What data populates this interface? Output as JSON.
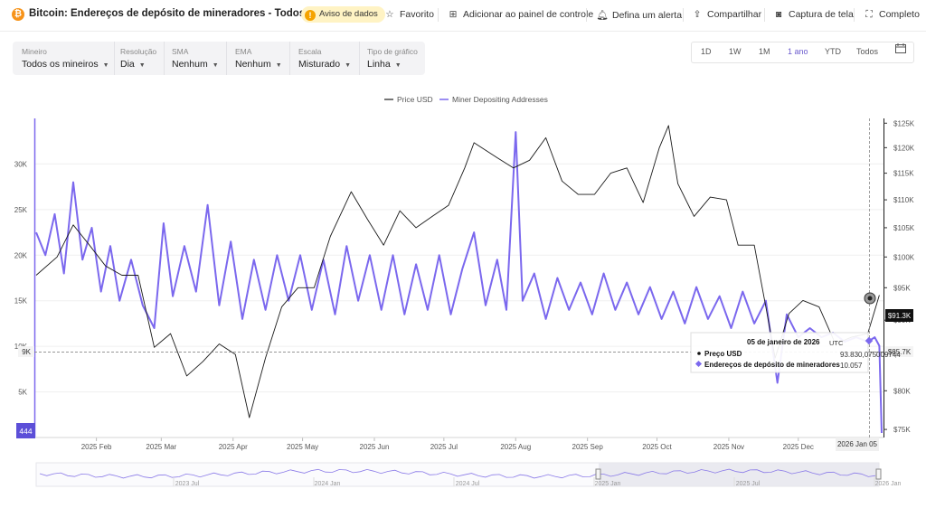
{
  "header": {
    "coin_glyph": "₿",
    "title": "Bitcoin: Endereços de depósito de mineradores - Todos os ...",
    "warning_label": "Aviso de dados",
    "actions": {
      "favorite": "Favorito",
      "add_dashboard": "Adicionar ao painel de controle",
      "alert": "Defina um alerta",
      "share": "Compartilhar",
      "screenshot": "Captura de tela",
      "fullscreen": "Completo"
    }
  },
  "filters": [
    {
      "label": "Mineiro",
      "value": "Todos os mineiros"
    },
    {
      "label": "Resolução",
      "value": "Dia"
    },
    {
      "label": "SMA",
      "value": "Nenhum"
    },
    {
      "label": "EMA",
      "value": "Nenhum"
    },
    {
      "label": "Escala",
      "value": "Misturado"
    },
    {
      "label": "Tipo de gráfico",
      "value": "Linha"
    }
  ],
  "ranges": [
    "1D",
    "1W",
    "1M",
    "1 ano",
    "YTD",
    "Todos"
  ],
  "active_range": "1 ano",
  "colors": {
    "price": "#1a1a1a",
    "addresses": "#7b68ee",
    "accent": "#6a5acd"
  },
  "tooltip": {
    "date": "05 de janeiro de 2026",
    "tz": "UTC",
    "rows": [
      {
        "label": "Preço USD",
        "value": "93.830,075009744"
      },
      {
        "label": "Endereços de depósito de mineradores",
        "value": "10.057"
      }
    ]
  },
  "chart_data": {
    "type": "line",
    "legend": [
      "Price USD",
      "Miner Depositing Addresses"
    ],
    "legend_position": "top-center",
    "x_labels": [
      "2025 Feb",
      "2025 Mar",
      "2025 Apr",
      "2025 May",
      "2025 Jun",
      "2025 Jul",
      "2025 Aug",
      "2025 Sep",
      "2025 Oct",
      "2025 Nov",
      "2025 Dec",
      "2026 Jan 05"
    ],
    "left_axis": {
      "ticks": [
        "5K",
        "10K",
        "15K",
        "20K",
        "25K",
        "30K"
      ],
      "ylim": [
        0,
        35000
      ],
      "marker": "9K",
      "bottom_marker": "444"
    },
    "right_axis": {
      "ticks": [
        "$75K",
        "$80K",
        "$85K",
        "$90K",
        "$95K",
        "$100K",
        "$105K",
        "$110K",
        "$115K",
        "$120K",
        "$125K"
      ],
      "ylim": [
        74000,
        126000
      ],
      "current": "$91.3K",
      "marker": "$85.7K",
      "scale": "log"
    },
    "x_start": "2025-01-06",
    "x_end": "2026-01-06",
    "series": [
      {
        "name": "Price USD",
        "points": [
          [
            "2025-01-06",
            97000
          ],
          [
            "2025-01-15",
            100000
          ],
          [
            "2025-01-22",
            105500
          ],
          [
            "2025-01-29",
            102000
          ],
          [
            "2025-02-05",
            98500
          ],
          [
            "2025-02-12",
            97000
          ],
          [
            "2025-02-19",
            97000
          ],
          [
            "2025-02-26",
            86000
          ],
          [
            "2025-03-05",
            88000
          ],
          [
            "2025-03-12",
            82000
          ],
          [
            "2025-03-19",
            84000
          ],
          [
            "2025-03-26",
            86500
          ],
          [
            "2025-04-02",
            85000
          ],
          [
            "2025-04-08",
            76500
          ],
          [
            "2025-04-15",
            84500
          ],
          [
            "2025-04-22",
            92000
          ],
          [
            "2025-04-29",
            95000
          ],
          [
            "2025-05-06",
            95000
          ],
          [
            "2025-05-13",
            103500
          ],
          [
            "2025-05-22",
            111500
          ],
          [
            "2025-05-29",
            106500
          ],
          [
            "2025-06-05",
            102000
          ],
          [
            "2025-06-12",
            108000
          ],
          [
            "2025-06-19",
            105000
          ],
          [
            "2025-06-26",
            107000
          ],
          [
            "2025-07-03",
            109000
          ],
          [
            "2025-07-10",
            116000
          ],
          [
            "2025-07-14",
            121000
          ],
          [
            "2025-07-24",
            118000
          ],
          [
            "2025-07-31",
            116000
          ],
          [
            "2025-08-07",
            117500
          ],
          [
            "2025-08-14",
            122000
          ],
          [
            "2025-08-21",
            113500
          ],
          [
            "2025-08-28",
            111000
          ],
          [
            "2025-09-04",
            111000
          ],
          [
            "2025-09-11",
            115000
          ],
          [
            "2025-09-18",
            116000
          ],
          [
            "2025-09-25",
            109500
          ],
          [
            "2025-10-02",
            120000
          ],
          [
            "2025-10-06",
            124500
          ],
          [
            "2025-10-10",
            113000
          ],
          [
            "2025-10-17",
            107000
          ],
          [
            "2025-10-24",
            110500
          ],
          [
            "2025-10-31",
            110000
          ],
          [
            "2025-11-05",
            102000
          ],
          [
            "2025-11-12",
            102000
          ],
          [
            "2025-11-17",
            92000
          ],
          [
            "2025-11-21",
            84500
          ],
          [
            "2025-11-27",
            91000
          ],
          [
            "2025-12-03",
            93000
          ],
          [
            "2025-12-10",
            92000
          ],
          [
            "2025-12-17",
            86500
          ],
          [
            "2025-12-24",
            87500
          ],
          [
            "2025-12-31",
            88000
          ],
          [
            "2026-01-05",
            93830
          ]
        ]
      },
      {
        "name": "Miner Depositing Addresses",
        "points": [
          [
            "2025-01-06",
            22500
          ],
          [
            "2025-01-10",
            20000
          ],
          [
            "2025-01-14",
            24500
          ],
          [
            "2025-01-18",
            18000
          ],
          [
            "2025-01-22",
            28000
          ],
          [
            "2025-01-26",
            19500
          ],
          [
            "2025-01-30",
            23000
          ],
          [
            "2025-02-03",
            16000
          ],
          [
            "2025-02-07",
            21000
          ],
          [
            "2025-02-11",
            15000
          ],
          [
            "2025-02-16",
            19500
          ],
          [
            "2025-02-21",
            14500
          ],
          [
            "2025-02-26",
            12000
          ],
          [
            "2025-03-02",
            23500
          ],
          [
            "2025-03-06",
            15500
          ],
          [
            "2025-03-11",
            21000
          ],
          [
            "2025-03-16",
            16000
          ],
          [
            "2025-03-21",
            25500
          ],
          [
            "2025-03-26",
            14500
          ],
          [
            "2025-03-31",
            21500
          ],
          [
            "2025-04-05",
            13000
          ],
          [
            "2025-04-10",
            19500
          ],
          [
            "2025-04-15",
            14000
          ],
          [
            "2025-04-20",
            20000
          ],
          [
            "2025-04-25",
            15000
          ],
          [
            "2025-04-30",
            20000
          ],
          [
            "2025-05-05",
            14000
          ],
          [
            "2025-05-10",
            19500
          ],
          [
            "2025-05-15",
            13500
          ],
          [
            "2025-05-20",
            21000
          ],
          [
            "2025-05-25",
            15000
          ],
          [
            "2025-05-30",
            20000
          ],
          [
            "2025-06-04",
            14000
          ],
          [
            "2025-06-09",
            20000
          ],
          [
            "2025-06-14",
            13500
          ],
          [
            "2025-06-19",
            19000
          ],
          [
            "2025-06-24",
            14000
          ],
          [
            "2025-06-29",
            20000
          ],
          [
            "2025-07-04",
            13500
          ],
          [
            "2025-07-09",
            18500
          ],
          [
            "2025-07-14",
            22500
          ],
          [
            "2025-07-19",
            14500
          ],
          [
            "2025-07-24",
            19500
          ],
          [
            "2025-07-28",
            14000
          ],
          [
            "2025-08-01",
            33500
          ],
          [
            "2025-08-04",
            15000
          ],
          [
            "2025-08-09",
            18000
          ],
          [
            "2025-08-14",
            13000
          ],
          [
            "2025-08-19",
            17500
          ],
          [
            "2025-08-24",
            14000
          ],
          [
            "2025-08-29",
            17000
          ],
          [
            "2025-09-03",
            13500
          ],
          [
            "2025-09-08",
            18000
          ],
          [
            "2025-09-13",
            14000
          ],
          [
            "2025-09-18",
            17000
          ],
          [
            "2025-09-23",
            13500
          ],
          [
            "2025-09-28",
            16500
          ],
          [
            "2025-10-03",
            13000
          ],
          [
            "2025-10-08",
            16000
          ],
          [
            "2025-10-13",
            12500
          ],
          [
            "2025-10-18",
            16500
          ],
          [
            "2025-10-23",
            13000
          ],
          [
            "2025-10-28",
            15500
          ],
          [
            "2025-11-02",
            12000
          ],
          [
            "2025-11-07",
            16000
          ],
          [
            "2025-11-12",
            12500
          ],
          [
            "2025-11-17",
            15000
          ],
          [
            "2025-11-22",
            6000
          ],
          [
            "2025-11-26",
            13500
          ],
          [
            "2025-12-01",
            11000
          ],
          [
            "2025-12-06",
            12000
          ],
          [
            "2025-12-11",
            11000
          ],
          [
            "2025-12-16",
            11500
          ],
          [
            "2025-12-21",
            10500
          ],
          [
            "2025-12-26",
            11000
          ],
          [
            "2025-12-31",
            10500
          ],
          [
            "2026-01-03",
            11000
          ],
          [
            "2026-01-05",
            10057
          ],
          [
            "2026-01-06",
            500
          ]
        ]
      }
    ],
    "navigator": {
      "labels": [
        "2023 Jul",
        "2024 Jan",
        "2024 Jul",
        "2025 Jan",
        "2025 Jul",
        "2026 Jan"
      ]
    }
  }
}
